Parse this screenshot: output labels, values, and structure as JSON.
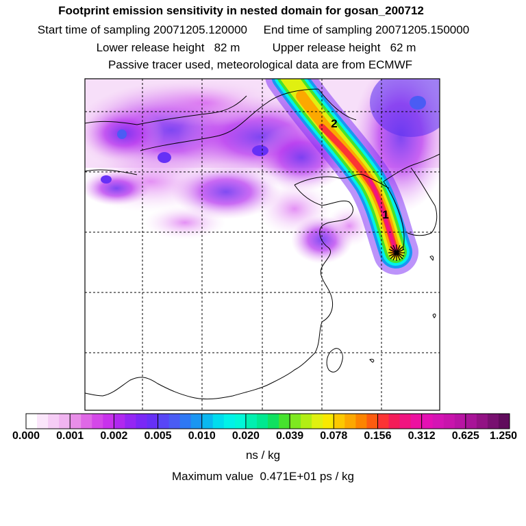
{
  "header": {
    "title": "Footprint emission sensitivity in nested domain for gosan_200712",
    "line2": "Start time of sampling 20071205.120000     End time of sampling 20071205.150000",
    "line3": "Lower release height   82 m          Upper release height   62 m",
    "line4": "Passive tracer used, meteorological data are from ECMWF"
  },
  "map": {
    "trajectory_labels": [
      "1",
      "2"
    ],
    "receptor_marker": "asterisk-star",
    "grid": true
  },
  "colorbar": {
    "ticks": [
      "0.000",
      "0.001",
      "0.002",
      "0.005",
      "0.010",
      "0.020",
      "0.039",
      "0.078",
      "0.156",
      "0.312",
      "0.625",
      "1.250"
    ],
    "colors": [
      "#ffffff",
      "#fbe6fb",
      "#f6cdf6",
      "#f0b4f0",
      "#e88ee8",
      "#df68e6",
      "#d448e8",
      "#c832ec",
      "#b028f0",
      "#9426f4",
      "#7a28f6",
      "#6630f6",
      "#5846f6",
      "#4a5cf4",
      "#2e78f4",
      "#1a96f2",
      "#0ab8f0",
      "#00dcee",
      "#00f2e8",
      "#00f8d8",
      "#00f0b0",
      "#00e890",
      "#10e060",
      "#46e22e",
      "#7ee820",
      "#b2ee14",
      "#e0f010",
      "#f8e800",
      "#fcc800",
      "#fca800",
      "#fc8400",
      "#fc5c10",
      "#fc3434",
      "#f41c58",
      "#f01480",
      "#ec10a0",
      "#e410b4",
      "#d414b4",
      "#c814ac",
      "#b814a4",
      "#a81498",
      "#921284",
      "#781070",
      "#600c5c"
    ],
    "units": "ns / kg",
    "maximum_label": "Maximum value  0.471E+01 ps / kg"
  }
}
